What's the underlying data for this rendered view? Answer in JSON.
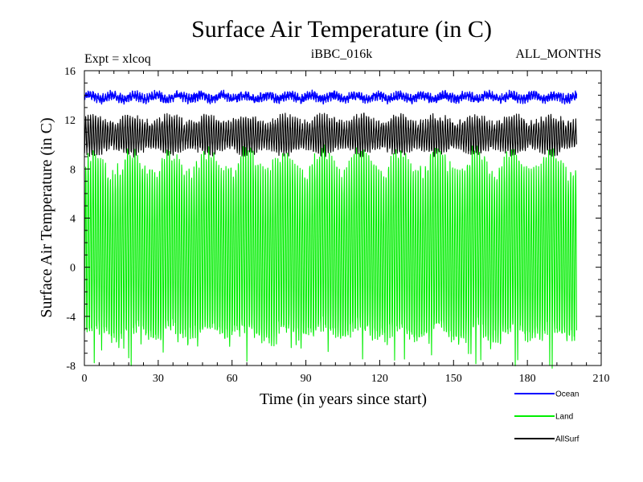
{
  "chart_data": {
    "type": "line",
    "title": "Surface Air Temperature (in C)",
    "subtitle_left": "Expt = xlcoq",
    "subtitle_center": "iBBC_016k",
    "subtitle_right": "ALL_MONTHS",
    "xlabel": "Time (in years since start)",
    "ylabel": "Surface Air Temperature (in C)",
    "xlim": [
      0,
      210
    ],
    "ylim": [
      -8,
      16
    ],
    "x_ticks": [
      0,
      30,
      60,
      90,
      120,
      150,
      180,
      210
    ],
    "y_ticks": [
      -8,
      -4,
      0,
      4,
      8,
      12,
      16
    ],
    "x_data_range": [
      0,
      200
    ],
    "grid": false,
    "legend_position": "bottom-right",
    "series": [
      {
        "name": "Land",
        "color": "#00ee00",
        "min_approx": -6.5,
        "max_approx": 10.0,
        "description_values": {
          "annual_low_mean": -5.5,
          "annual_high_mean": 9.3
        }
      },
      {
        "name": "AllSurf",
        "color": "#000000",
        "min_approx": 8.8,
        "max_approx": 13.0,
        "description_values": {
          "annual_low_mean": 9.4,
          "annual_high_mean": 12.4
        }
      },
      {
        "name": "Ocean",
        "color": "#0000ff",
        "min_approx": 13.2,
        "max_approx": 14.5,
        "description_values": {
          "annual_low_mean": 13.6,
          "annual_high_mean": 14.1
        }
      }
    ],
    "legend_order": [
      "Ocean",
      "Land",
      "AllSurf"
    ]
  }
}
